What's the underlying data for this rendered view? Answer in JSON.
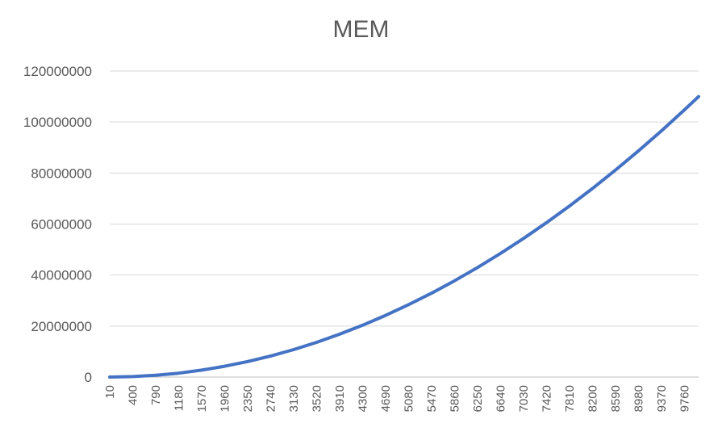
{
  "chart_data": {
    "type": "line",
    "title": "MEM",
    "xlabel": "",
    "ylabel": "",
    "x": [
      10,
      400,
      790,
      1180,
      1570,
      1960,
      2350,
      2740,
      3130,
      3520,
      3910,
      4300,
      4690,
      5080,
      5470,
      5860,
      6250,
      6640,
      7030,
      7420,
      7810,
      8200,
      8590,
      8980,
      9370,
      9760,
      10000
    ],
    "x_tick_labels": [
      "10",
      "400",
      "790",
      "1180",
      "1570",
      "1960",
      "2350",
      "2740",
      "3130",
      "3520",
      "3910",
      "4300",
      "4690",
      "5080",
      "5470",
      "5860",
      "6250",
      "6640",
      "7030",
      "7420",
      "7810",
      "8200",
      "8590",
      "8980",
      "9370",
      "9760"
    ],
    "series": [
      {
        "values": [
          0,
          176000,
          686000,
          1530000,
          2710000,
          4230000,
          6070000,
          8260000,
          10770000,
          13630000,
          16820000,
          20340000,
          24200000,
          28390000,
          32910000,
          37780000,
          42970000,
          48500000,
          54360000,
          60560000,
          67100000,
          73970000,
          81170000,
          88710000,
          96580000,
          104790000,
          110000000
        ],
        "color": "#4472C4"
      }
    ],
    "y_ticks": [
      0,
      20000000,
      40000000,
      60000000,
      80000000,
      100000000,
      120000000
    ],
    "y_tick_labels": [
      "0",
      "20000000",
      "40000000",
      "60000000",
      "80000000",
      "100000000",
      "120000000"
    ],
    "ylim": [
      0,
      120000000
    ],
    "xlim": [
      10,
      10000
    ],
    "grid": true,
    "legend": "none",
    "gridline_color": "#D9D9D9",
    "axis_line_color": "#BFBFBF"
  }
}
